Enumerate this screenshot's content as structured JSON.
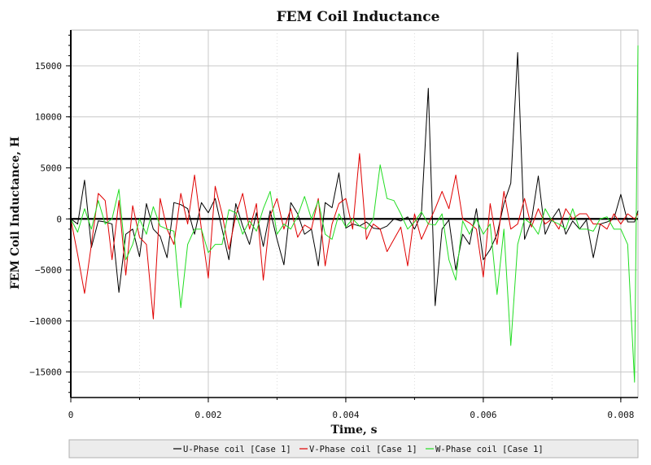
{
  "chart_data": {
    "type": "line",
    "title": "FEM Coil Inductance",
    "xlabel": "Time, s",
    "ylabel": "FEM Coil Inductance, H",
    "xlim": [
      0,
      0.00825
    ],
    "ylim": [
      -17500,
      18500
    ],
    "x_ticks": [
      {
        "value": 0,
        "label": "0"
      },
      {
        "value": 0.002,
        "label": "0.002"
      },
      {
        "value": 0.004,
        "label": "0.004"
      },
      {
        "value": 0.006,
        "label": "0.006"
      },
      {
        "value": 0.008,
        "label": "0.008"
      }
    ],
    "y_ticks": [
      {
        "value": 15000,
        "label": "15000"
      },
      {
        "value": 10000,
        "label": "10000"
      },
      {
        "value": 5000,
        "label": "5000"
      },
      {
        "value": 0,
        "label": "0"
      },
      {
        "value": -5000,
        "label": "−5000"
      },
      {
        "value": -10000,
        "label": "−10000"
      },
      {
        "value": -15000,
        "label": "−15000"
      }
    ],
    "grid": true,
    "legend_position": "bottom",
    "series": [
      {
        "name": "U-Phase coil [Case 1]",
        "color": "#000000",
        "x": [
          0,
          0.0001,
          0.0002,
          0.0003,
          0.0004,
          0.0005,
          0.0006,
          0.0007,
          0.0008,
          0.0009,
          0.001,
          0.0011,
          0.0012,
          0.0013,
          0.0014,
          0.0015,
          0.0016,
          0.0017,
          0.0018,
          0.0019,
          0.002,
          0.0021,
          0.0022,
          0.0023,
          0.0024,
          0.0025,
          0.0026,
          0.0027,
          0.0028,
          0.0029,
          0.003,
          0.0031,
          0.0032,
          0.0033,
          0.0034,
          0.0035,
          0.0036,
          0.0037,
          0.0038,
          0.0039,
          0.004,
          0.0041,
          0.0042,
          0.0043,
          0.0044,
          0.0045,
          0.0046,
          0.0047,
          0.0048,
          0.0049,
          0.005,
          0.0051,
          0.0052,
          0.0053,
          0.0054,
          0.0055,
          0.0056,
          0.0057,
          0.0058,
          0.0059,
          0.006,
          0.0061,
          0.0062,
          0.0063,
          0.0064,
          0.0065,
          0.0066,
          0.0067,
          0.0068,
          0.0069,
          0.007,
          0.0071,
          0.0072,
          0.0073,
          0.0074,
          0.0075,
          0.0076,
          0.0077,
          0.0078,
          0.0079,
          0.008,
          0.0081,
          0.0082,
          0.00825
        ],
        "y": [
          0,
          -500,
          3800,
          -2800,
          -200,
          -300,
          -500,
          -7200,
          -1500,
          -1000,
          -3700,
          1500,
          -1000,
          -1700,
          -3800,
          1600,
          1400,
          1000,
          -1500,
          1600,
          600,
          2000,
          -1000,
          -4000,
          1500,
          -700,
          -2500,
          600,
          -2700,
          800,
          -2000,
          -4500,
          1600,
          500,
          -1500,
          -1000,
          -4600,
          1600,
          1100,
          4500,
          -900,
          -500,
          -700,
          -300,
          -900,
          -1000,
          -700,
          0,
          -200,
          200,
          -1000,
          500,
          12800,
          -8500,
          -1000,
          -100,
          -5000,
          -1500,
          -2500,
          1000,
          -4000,
          -3000,
          -1500,
          1500,
          3500,
          16300,
          -2000,
          -200,
          4200,
          -1500,
          0,
          1000,
          -1500,
          -200,
          -1000,
          -100,
          -3800,
          -500,
          -300,
          0,
          2400,
          -300,
          -300,
          800
        ]
      },
      {
        "name": "V-Phase coil [Case 1]",
        "color": "#e00000",
        "x": [
          0,
          0.0001,
          0.0002,
          0.0003,
          0.0004,
          0.0005,
          0.0006,
          0.0007,
          0.0008,
          0.0009,
          0.001,
          0.0011,
          0.0012,
          0.0013,
          0.0014,
          0.0015,
          0.0016,
          0.0017,
          0.0018,
          0.0019,
          0.002,
          0.0021,
          0.0022,
          0.0023,
          0.0024,
          0.0025,
          0.0026,
          0.0027,
          0.0028,
          0.0029,
          0.003,
          0.0031,
          0.0032,
          0.0033,
          0.0034,
          0.0035,
          0.0036,
          0.0037,
          0.0038,
          0.0039,
          0.004,
          0.0041,
          0.0042,
          0.0043,
          0.0044,
          0.0045,
          0.0046,
          0.0047,
          0.0048,
          0.0049,
          0.005,
          0.0051,
          0.0052,
          0.0053,
          0.0054,
          0.0055,
          0.0056,
          0.0057,
          0.0058,
          0.0059,
          0.006,
          0.0061,
          0.0062,
          0.0063,
          0.0064,
          0.0065,
          0.0066,
          0.0067,
          0.0068,
          0.0069,
          0.007,
          0.0071,
          0.0072,
          0.0073,
          0.0074,
          0.0075,
          0.0076,
          0.0077,
          0.0078,
          0.0079,
          0.008,
          0.0081,
          0.0082,
          0.00825
        ],
        "y": [
          0,
          -3500,
          -7300,
          -2500,
          2500,
          1800,
          -4000,
          1800,
          -5500,
          1300,
          -1800,
          -2500,
          -9800,
          2000,
          -1000,
          -2500,
          2500,
          -500,
          4300,
          -1000,
          -5800,
          3200,
          500,
          -3000,
          300,
          2500,
          -1000,
          1500,
          -6000,
          300,
          2000,
          -1000,
          1000,
          -1800,
          -600,
          -1000,
          2000,
          -4600,
          -500,
          1500,
          2000,
          -1000,
          6400,
          -2000,
          -500,
          -1000,
          -3200,
          -2000,
          -800,
          -4600,
          500,
          -2000,
          -500,
          1000,
          2700,
          1000,
          4300,
          0,
          -400,
          -1000,
          -5700,
          1500,
          -2500,
          2700,
          -1000,
          -500,
          2000,
          -800,
          1000,
          -500,
          0,
          -1000,
          1000,
          0,
          500,
          500,
          -500,
          -500,
          -1000,
          500,
          -500,
          500,
          0,
          500
        ]
      },
      {
        "name": "W-Phase coil [Case 1]",
        "color": "#22dd22",
        "x": [
          0,
          0.0001,
          0.0002,
          0.0003,
          0.0004,
          0.0005,
          0.0006,
          0.0007,
          0.0008,
          0.0009,
          0.001,
          0.0011,
          0.0012,
          0.0013,
          0.0014,
          0.0015,
          0.0016,
          0.0017,
          0.0018,
          0.0019,
          0.002,
          0.0021,
          0.0022,
          0.0023,
          0.0024,
          0.0025,
          0.0026,
          0.0027,
          0.0028,
          0.0029,
          0.003,
          0.0031,
          0.0032,
          0.0033,
          0.0034,
          0.0035,
          0.0036,
          0.0037,
          0.0038,
          0.0039,
          0.004,
          0.0041,
          0.0042,
          0.0043,
          0.0044,
          0.0045,
          0.0046,
          0.0047,
          0.0048,
          0.0049,
          0.005,
          0.0051,
          0.0052,
          0.0053,
          0.0054,
          0.0055,
          0.0056,
          0.0057,
          0.0058,
          0.0059,
          0.006,
          0.0061,
          0.0062,
          0.0063,
          0.0064,
          0.0065,
          0.0066,
          0.0067,
          0.0068,
          0.0069,
          0.007,
          0.0071,
          0.0072,
          0.0073,
          0.0074,
          0.0075,
          0.0076,
          0.0077,
          0.0078,
          0.0079,
          0.008,
          0.0081,
          0.0082,
          0.00825
        ],
        "y": [
          0,
          -1300,
          1000,
          -1000,
          1800,
          -500,
          0,
          2900,
          -4000,
          -2500,
          0,
          -1500,
          1200,
          -700,
          -1000,
          -1200,
          -8700,
          -2500,
          -1000,
          -1000,
          -3300,
          -2500,
          -2500,
          900,
          600,
          -1500,
          -200,
          -1200,
          1000,
          2700,
          -1500,
          -500,
          -1000,
          300,
          2200,
          0,
          1800,
          -1500,
          -2000,
          500,
          -800,
          0,
          -700,
          -1000,
          0,
          5300,
          2000,
          1800,
          500,
          -1000,
          -300,
          700,
          -500,
          -600,
          500,
          -4000,
          -6000,
          -200,
          -1500,
          0,
          -1500,
          -500,
          -7400,
          -1000,
          -12400,
          -2500,
          0,
          -500,
          -1500,
          1000,
          -200,
          -500,
          -1000,
          1000,
          -1000,
          -1000,
          -1200,
          0,
          200,
          -1000,
          -1000,
          -2500,
          -16000,
          17000
        ]
      }
    ]
  }
}
